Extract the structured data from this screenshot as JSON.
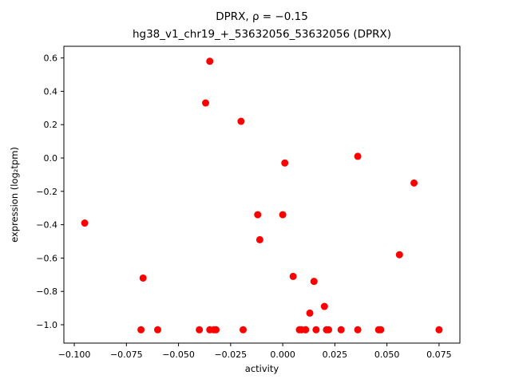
{
  "chart_data": {
    "type": "scatter",
    "title": "DPRX, ρ = −0.15",
    "subtitle": "hg38_v1_chr19_+_53632056_53632056 (DPRX)",
    "xlabel": "activity",
    "ylabel": "expression (log₂tpm)",
    "xlim": [
      -0.105,
      0.085
    ],
    "ylim": [
      -1.11,
      0.67
    ],
    "xticks": [
      -0.1,
      -0.075,
      -0.05,
      -0.025,
      0.0,
      0.025,
      0.05,
      0.075
    ],
    "yticks": [
      0.6,
      0.4,
      0.2,
      0.0,
      -0.2,
      -0.4,
      -0.6,
      -0.8,
      -1.0
    ],
    "marker_color": "#ff0000",
    "grid": false,
    "legend": "none",
    "points": [
      [
        -0.095,
        -0.39
      ],
      [
        -0.068,
        -1.03
      ],
      [
        -0.067,
        -0.72
      ],
      [
        -0.06,
        -1.03
      ],
      [
        -0.04,
        -1.03
      ],
      [
        -0.037,
        0.33
      ],
      [
        -0.035,
        0.58
      ],
      [
        -0.035,
        -1.03
      ],
      [
        -0.033,
        -1.03
      ],
      [
        -0.032,
        -1.03
      ],
      [
        -0.02,
        0.22
      ],
      [
        -0.019,
        -1.03
      ],
      [
        -0.012,
        -0.34
      ],
      [
        -0.011,
        -0.49
      ],
      [
        0.0,
        -0.34
      ],
      [
        0.001,
        -0.03
      ],
      [
        0.005,
        -0.71
      ],
      [
        0.008,
        -1.03
      ],
      [
        0.009,
        -1.03
      ],
      [
        0.011,
        -1.03
      ],
      [
        0.013,
        -0.93
      ],
      [
        0.015,
        -0.74
      ],
      [
        0.016,
        -1.03
      ],
      [
        0.02,
        -0.89
      ],
      [
        0.021,
        -1.03
      ],
      [
        0.022,
        -1.03
      ],
      [
        0.028,
        -1.03
      ],
      [
        0.036,
        0.01
      ],
      [
        0.036,
        -1.03
      ],
      [
        0.046,
        -1.03
      ],
      [
        0.047,
        -1.03
      ],
      [
        0.056,
        -0.58
      ],
      [
        0.063,
        -0.15
      ],
      [
        0.075,
        -1.03
      ]
    ]
  }
}
